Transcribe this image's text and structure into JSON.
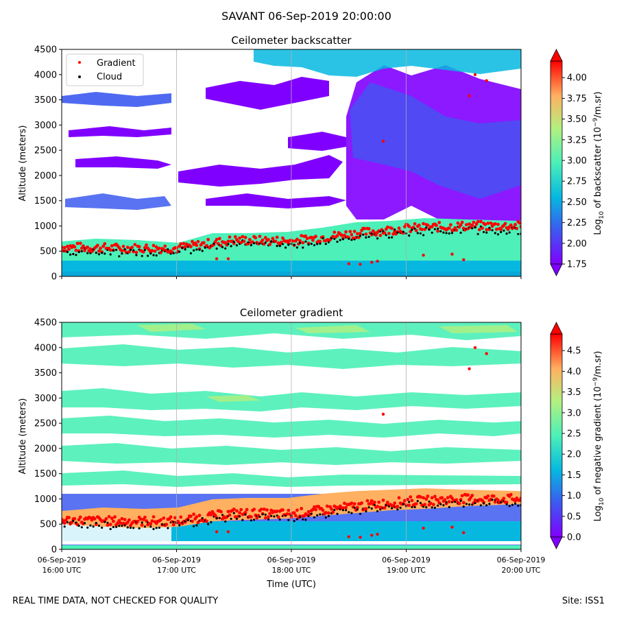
{
  "suptitle": "SAVANT 06-Sep-2019 20:00:00",
  "footer_left": "REAL TIME DATA, NOT CHECKED FOR QUALITY",
  "footer_right": "Site: ISS1",
  "colors": {
    "gradient_marker": "#ff0000",
    "cloud_marker": "#000000",
    "grid": "#b0b0b0"
  },
  "chart_data": [
    {
      "type": "heatmap",
      "title": "Ceilometer backscatter",
      "xlabel": "",
      "ylabel": "Altitude (meters)",
      "xlim": [
        16,
        20
      ],
      "ylim": [
        0,
        4500
      ],
      "y_ticks": [
        0,
        500,
        1000,
        1500,
        2000,
        2500,
        3000,
        3500,
        4000,
        4500
      ],
      "grid": "vertical at hourly ticks",
      "legend": {
        "position": "upper-left",
        "entries": [
          "Gradient",
          "Cloud"
        ]
      },
      "colorbar": {
        "label_prefix": "Log",
        "label_sub": "10",
        "label_mid": " of backscatter (10",
        "label_sup": "−9",
        "label_suffix": "/m.sr)",
        "range": [
          1.75,
          4.2
        ],
        "ticks": [
          "1.75",
          "2.00",
          "2.25",
          "2.50",
          "2.75",
          "3.00",
          "3.25",
          "3.50",
          "3.75",
          "4.00"
        ],
        "tick_values": [
          1.75,
          2.0,
          2.25,
          2.5,
          2.75,
          3.0,
          3.25,
          3.5,
          3.75,
          4.0
        ]
      },
      "gradient_layer_altitude_m": {
        "x_hours": [
          16.0,
          16.5,
          17.0,
          17.5,
          18.0,
          18.5,
          19.0,
          19.5,
          20.0
        ],
        "values": [
          580,
          560,
          560,
          720,
          700,
          840,
          950,
          1000,
          1000
        ]
      },
      "cloud_layer_altitude_m": {
        "x_hours": [
          16.0,
          16.5,
          17.0,
          17.5,
          18.0,
          18.5,
          19.0,
          19.5,
          20.0
        ],
        "values": [
          500,
          470,
          480,
          650,
          620,
          750,
          880,
          920,
          900
        ]
      }
    },
    {
      "type": "heatmap",
      "title": "Ceilometer gradient",
      "xlabel": "Time (UTC)",
      "ylabel": "Altitude (meters)",
      "xlim": [
        16,
        20
      ],
      "ylim": [
        0,
        4500
      ],
      "x_ticks": [
        {
          "date": "06-Sep-2019",
          "time": "16:00 UTC",
          "hour": 16
        },
        {
          "date": "06-Sep-2019",
          "time": "17:00 UTC",
          "hour": 17
        },
        {
          "date": "06-Sep-2019",
          "time": "18:00 UTC",
          "hour": 18
        },
        {
          "date": "06-Sep-2019",
          "time": "19:00 UTC",
          "hour": 19
        },
        {
          "date": "06-Sep-2019",
          "time": "20:00 UTC",
          "hour": 20
        }
      ],
      "y_ticks": [
        0,
        500,
        1000,
        1500,
        2000,
        2500,
        3000,
        3500,
        4000,
        4500
      ],
      "grid": "vertical at hourly ticks",
      "colorbar": {
        "label_prefix": "Log",
        "label_sub": "10",
        "label_mid": " of negative gradient (10",
        "label_sup": "−9",
        "label_suffix": "/m.sr)",
        "range": [
          0,
          4.9
        ],
        "ticks": [
          "0.0",
          "0.5",
          "1.0",
          "1.5",
          "2.0",
          "2.5",
          "3.0",
          "3.5",
          "4.0",
          "4.5"
        ],
        "tick_values": [
          0,
          0.5,
          1.0,
          1.5,
          2.0,
          2.5,
          3.0,
          3.5,
          4.0,
          4.5
        ]
      }
    }
  ]
}
